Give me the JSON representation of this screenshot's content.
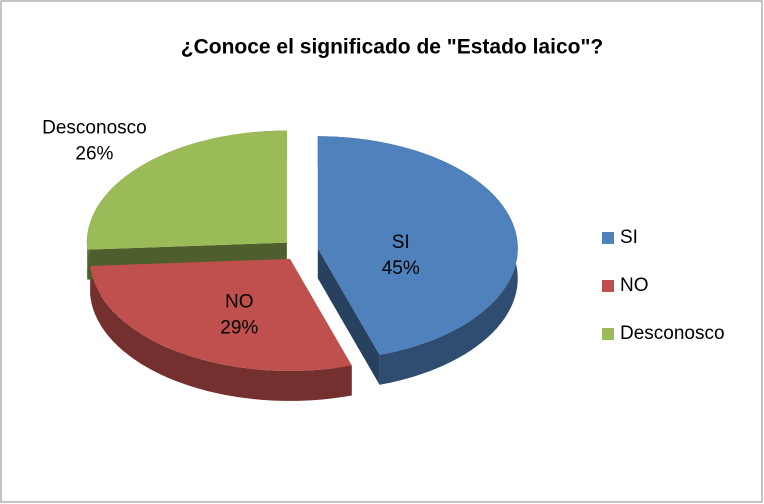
{
  "chart_data": {
    "type": "pie",
    "title": "¿Conoce el significado de \"Estado laico\"?",
    "categories": [
      "SI",
      "NO",
      "Desconosco"
    ],
    "values": [
      45,
      29,
      26
    ],
    "value_labels": [
      "45%",
      "29%",
      "26%"
    ],
    "colors": [
      "#4f81bd",
      "#c0504d",
      "#9bbb59"
    ],
    "legend": "right"
  }
}
